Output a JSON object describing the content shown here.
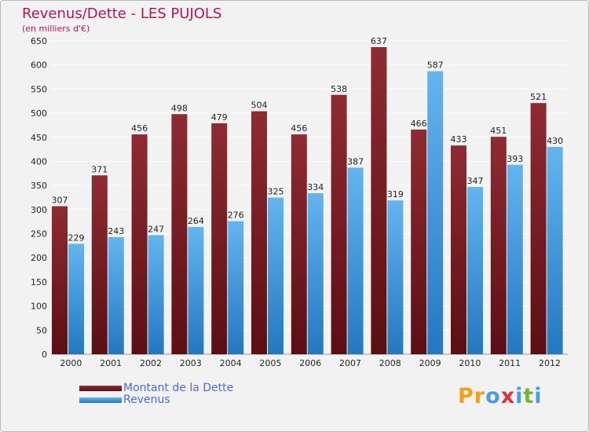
{
  "title": "Revenus/Dette - LES PUJOLS",
  "subtitle": "(en milliers d'€)",
  "logo": {
    "letters": [
      "P",
      "r",
      "o",
      "x",
      "i",
      "t",
      "i"
    ],
    "colors": [
      "#f0a020",
      "#f0a020",
      "#4a9ee0",
      "#e03040",
      "#4a9ee0",
      "#70b830",
      "#4a9ee0"
    ]
  },
  "colors": {
    "dette_top": "#8e2b32",
    "dette_bottom": "#5a0f14",
    "revenus_top": "#64b4ee",
    "revenus_bottom": "#2478c0",
    "grid": "#ffffff",
    "axis_text": "#222222"
  },
  "chart_data": {
    "type": "bar",
    "title": "Revenus/Dette - LES PUJOLS",
    "subtitle": "(en milliers d'€)",
    "xlabel": "",
    "ylabel": "",
    "ylim": [
      0,
      650
    ],
    "yticks": [
      0,
      50,
      100,
      150,
      200,
      250,
      300,
      350,
      400,
      450,
      500,
      550,
      600,
      650
    ],
    "grid": true,
    "legend_position": "bottom-left",
    "categories": [
      "2000",
      "2001",
      "2002",
      "2003",
      "2004",
      "2005",
      "2006",
      "2007",
      "2008",
      "2009",
      "2010",
      "2011",
      "2012"
    ],
    "series": [
      {
        "name": "Montant de la Dette",
        "values": [
          307,
          371,
          456,
          498,
          479,
          504,
          456,
          538,
          637,
          466,
          433,
          451,
          521
        ]
      },
      {
        "name": "Revenus",
        "values": [
          229,
          243,
          247,
          264,
          276,
          325,
          334,
          387,
          319,
          587,
          347,
          393,
          430
        ]
      }
    ]
  }
}
